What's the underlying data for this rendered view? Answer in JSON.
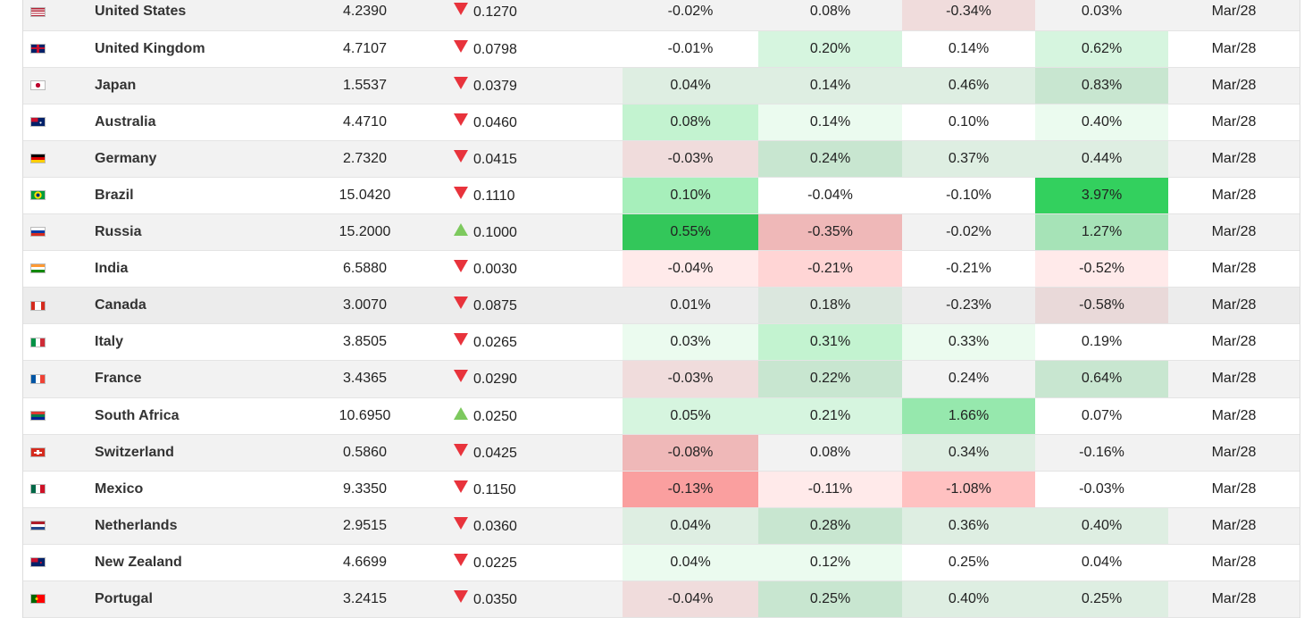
{
  "colors": {
    "down_arrow": "#e8333c",
    "up_arrow": "#7dc95e",
    "row_stripe": "#f2f2f2",
    "row_plain": "#ffffff"
  },
  "rows": [
    {
      "country": "United States",
      "flag_icon": "us-flag-icon",
      "flag_bg": "linear-gradient(#b22234 0 15%,#fff 15% 30%,#b22234 30% 45%,#fff 45% 60%,#b22234 60% 75%,#fff 75% 90%,#b22234 90%)",
      "yield": "4.2390",
      "dir": "down",
      "change": "0.1270",
      "cells": [
        {
          "v": "-0.02%",
          "c": "#f2f2f2"
        },
        {
          "v": "0.08%",
          "c": "#f2f2f2"
        },
        {
          "v": "-0.34%",
          "c": "#f0dcdc"
        },
        {
          "v": "0.03%",
          "c": "#f2f2f2"
        }
      ],
      "date": "Mar/28",
      "stripe": true
    },
    {
      "country": "United Kingdom",
      "flag_icon": "uk-flag-icon",
      "flag_bg": "linear-gradient(#c8102e,#c8102e) center/100% 22% no-repeat, linear-gradient(#c8102e,#c8102e) center/20% 100% no-repeat, #012169",
      "yield": "4.7107",
      "dir": "down",
      "change": "0.0798",
      "cells": [
        {
          "v": "-0.01%",
          "c": "#ffffff"
        },
        {
          "v": "0.20%",
          "c": "#d6f5df"
        },
        {
          "v": "0.14%",
          "c": "#ffffff"
        },
        {
          "v": "0.62%",
          "c": "#d6f5df"
        }
      ],
      "date": "Mar/28",
      "stripe": false
    },
    {
      "country": "Japan",
      "flag_icon": "japan-flag-icon",
      "flag_bg": "radial-gradient(circle, #bc002d 0 28%, #ffffff 31%)",
      "yield": "1.5537",
      "dir": "down",
      "change": "0.0379",
      "cells": [
        {
          "v": "0.04%",
          "c": "#deeee2"
        },
        {
          "v": "0.14%",
          "c": "#deeee2"
        },
        {
          "v": "0.46%",
          "c": "#deeee2"
        },
        {
          "v": "0.83%",
          "c": "#c8e6d0"
        }
      ],
      "date": "Mar/28",
      "stripe": true
    },
    {
      "country": "Australia",
      "flag_icon": "australia-flag-icon",
      "flag_bg": "radial-gradient(circle at 70% 60%, #ffffff 0 8%, transparent 10%), linear-gradient(#c8102e,#c8102e) 0 0/50% 50% no-repeat, #012169",
      "yield": "4.4710",
      "dir": "down",
      "change": "0.0460",
      "cells": [
        {
          "v": "0.08%",
          "c": "#c3f3d0"
        },
        {
          "v": "0.14%",
          "c": "#ebfbef"
        },
        {
          "v": "0.10%",
          "c": "#ffffff"
        },
        {
          "v": "0.40%",
          "c": "#ebfbef"
        }
      ],
      "date": "Mar/28",
      "stripe": false
    },
    {
      "country": "Germany",
      "flag_icon": "germany-flag-icon",
      "flag_bg": "linear-gradient(#000000 0 33%, #dd0000 33% 66%, #ffce00 66%)",
      "yield": "2.7320",
      "dir": "down",
      "change": "0.0415",
      "cells": [
        {
          "v": "-0.03%",
          "c": "#f0dcdc"
        },
        {
          "v": "0.24%",
          "c": "#c8e6d0"
        },
        {
          "v": "0.37%",
          "c": "#deeee2"
        },
        {
          "v": "0.44%",
          "c": "#deeee2"
        }
      ],
      "date": "Mar/28",
      "stripe": true
    },
    {
      "country": "Brazil",
      "flag_icon": "brazil-flag-icon",
      "flag_bg": "radial-gradient(circle, #002776 0 22%, #ffdf00 24% 46%, #009c3b 48%)",
      "yield": "15.0420",
      "dir": "down",
      "change": "0.1110",
      "cells": [
        {
          "v": "0.10%",
          "c": "#a7efbb"
        },
        {
          "v": "-0.04%",
          "c": "#ffffff"
        },
        {
          "v": "-0.10%",
          "c": "#ffffff"
        },
        {
          "v": "3.97%",
          "c": "#33d05e"
        }
      ],
      "date": "Mar/28",
      "stripe": false
    },
    {
      "country": "Russia",
      "flag_icon": "russia-flag-icon",
      "flag_bg": "linear-gradient(#ffffff 0 33%, #0039a6 33% 66%, #d52b1e 66%)",
      "yield": "15.2000",
      "dir": "up",
      "change": "0.1000",
      "cells": [
        {
          "v": "0.55%",
          "c": "#33c75a"
        },
        {
          "v": "-0.35%",
          "c": "#efb8b8"
        },
        {
          "v": "-0.02%",
          "c": "#f2f2f2"
        },
        {
          "v": "1.27%",
          "c": "#a6e3b7"
        }
      ],
      "date": "Mar/28",
      "stripe": true
    },
    {
      "country": "India",
      "flag_icon": "india-flag-icon",
      "flag_bg": "linear-gradient(#ff9933 0 33%, #ffffff 33% 66%, #138808 66%)",
      "yield": "6.5880",
      "dir": "down",
      "change": "0.0030",
      "cells": [
        {
          "v": "-0.04%",
          "c": "#ffeaea"
        },
        {
          "v": "-0.21%",
          "c": "#ffd5d5"
        },
        {
          "v": "-0.21%",
          "c": "#ffffff"
        },
        {
          "v": "-0.52%",
          "c": "#ffeaea"
        }
      ],
      "date": "Mar/28",
      "stripe": false
    },
    {
      "country": "Canada",
      "flag_icon": "canada-flag-icon",
      "flag_bg": "linear-gradient(90deg, #d52b1e 0 28%, #ffffff 28% 72%, #d52b1e 72%)",
      "yield": "3.0070",
      "dir": "down",
      "change": "0.0875",
      "cells": [
        {
          "v": "0.01%",
          "c": "#ececec"
        },
        {
          "v": "0.18%",
          "c": "#dbe7de"
        },
        {
          "v": "-0.23%",
          "c": "#ececec"
        },
        {
          "v": "-0.58%",
          "c": "#e9d9d9"
        }
      ],
      "date": "Mar/28",
      "stripe": true,
      "hover": true
    },
    {
      "country": "Italy",
      "flag_icon": "italy-flag-icon",
      "flag_bg": "linear-gradient(90deg, #009246 0 33%, #ffffff 33% 66%, #ce2b37 66%)",
      "yield": "3.8505",
      "dir": "down",
      "change": "0.0265",
      "cells": [
        {
          "v": "0.03%",
          "c": "#ebfbef"
        },
        {
          "v": "0.31%",
          "c": "#c3f3d0"
        },
        {
          "v": "0.33%",
          "c": "#ebfbef"
        },
        {
          "v": "0.19%",
          "c": "#ffffff"
        }
      ],
      "date": "Mar/28",
      "stripe": false
    },
    {
      "country": "France",
      "flag_icon": "france-flag-icon",
      "flag_bg": "linear-gradient(90deg, #0055a4 0 33%, #ffffff 33% 66%, #ef4135 66%)",
      "yield": "3.4365",
      "dir": "down",
      "change": "0.0290",
      "cells": [
        {
          "v": "-0.03%",
          "c": "#f0dcdc"
        },
        {
          "v": "0.22%",
          "c": "#c8e6d0"
        },
        {
          "v": "0.24%",
          "c": "#f2f2f2"
        },
        {
          "v": "0.64%",
          "c": "#c8e6d0"
        }
      ],
      "date": "Mar/28",
      "stripe": true
    },
    {
      "country": "South Africa",
      "flag_icon": "south-africa-flag-icon",
      "flag_bg": "linear-gradient(#de3831 0 33%, #007a4d 33% 66%, #002395 66%)",
      "yield": "10.6950",
      "dir": "up",
      "change": "0.0250",
      "cells": [
        {
          "v": "0.05%",
          "c": "#d6f5df"
        },
        {
          "v": "0.21%",
          "c": "#d6f5df"
        },
        {
          "v": "1.66%",
          "c": "#96e8ad"
        },
        {
          "v": "0.07%",
          "c": "#ffffff"
        }
      ],
      "date": "Mar/28",
      "stripe": false
    },
    {
      "country": "Switzerland",
      "flag_icon": "switzerland-flag-icon",
      "flag_bg": "linear-gradient(#ffffff,#ffffff) center/60% 20% no-repeat, linear-gradient(#ffffff,#ffffff) center/20% 60% no-repeat, #d52b1e",
      "yield": "0.5860",
      "dir": "down",
      "change": "0.0425",
      "cells": [
        {
          "v": "-0.08%",
          "c": "#efb8b8"
        },
        {
          "v": "0.08%",
          "c": "#f2f2f2"
        },
        {
          "v": "0.34%",
          "c": "#deeee2"
        },
        {
          "v": "-0.16%",
          "c": "#f2f2f2"
        }
      ],
      "date": "Mar/28",
      "stripe": true
    },
    {
      "country": "Mexico",
      "flag_icon": "mexico-flag-icon",
      "flag_bg": "linear-gradient(90deg, #006847 0 33%, #ffffff 33% 66%, #ce1126 66%)",
      "yield": "9.3350",
      "dir": "down",
      "change": "0.1150",
      "cells": [
        {
          "v": "-0.13%",
          "c": "#fa9f9f"
        },
        {
          "v": "-0.11%",
          "c": "#ffeaea"
        },
        {
          "v": "-1.08%",
          "c": "#ffc1c1"
        },
        {
          "v": "-0.03%",
          "c": "#ffffff"
        }
      ],
      "date": "Mar/28",
      "stripe": false
    },
    {
      "country": "Netherlands",
      "flag_icon": "netherlands-flag-icon",
      "flag_bg": "linear-gradient(#ae1c28 0 33%, #ffffff 33% 66%, #21468b 66%)",
      "yield": "2.9515",
      "dir": "down",
      "change": "0.0360",
      "cells": [
        {
          "v": "0.04%",
          "c": "#deeee2"
        },
        {
          "v": "0.28%",
          "c": "#c8e6d0"
        },
        {
          "v": "0.36%",
          "c": "#deeee2"
        },
        {
          "v": "0.40%",
          "c": "#deeee2"
        }
      ],
      "date": "Mar/28",
      "stripe": true
    },
    {
      "country": "New Zealand",
      "flag_icon": "new-zealand-flag-icon",
      "flag_bg": "radial-gradient(circle at 72% 55%, #c8102e 0 8%, transparent 10%), linear-gradient(#c8102e,#c8102e) 0 0/50% 50% no-repeat, #012169",
      "yield": "4.6699",
      "dir": "down",
      "change": "0.0225",
      "cells": [
        {
          "v": "0.04%",
          "c": "#ebfbef"
        },
        {
          "v": "0.12%",
          "c": "#ebfbef"
        },
        {
          "v": "0.25%",
          "c": "#ffffff"
        },
        {
          "v": "0.04%",
          "c": "#ffffff"
        }
      ],
      "date": "Mar/28",
      "stripe": false
    },
    {
      "country": "Portugal",
      "flag_icon": "portugal-flag-icon",
      "flag_bg": "radial-gradient(circle at 40% 50%, #ffcc00 0 14%, transparent 16%), linear-gradient(90deg, #006600 0 40%, #ff0000 40%)",
      "yield": "3.2415",
      "dir": "down",
      "change": "0.0350",
      "cells": [
        {
          "v": "-0.04%",
          "c": "#f0dcdc"
        },
        {
          "v": "0.25%",
          "c": "#c8e6d0"
        },
        {
          "v": "0.40%",
          "c": "#deeee2"
        },
        {
          "v": "0.25%",
          "c": "#deeee2"
        }
      ],
      "date": "Mar/28",
      "stripe": true
    }
  ]
}
